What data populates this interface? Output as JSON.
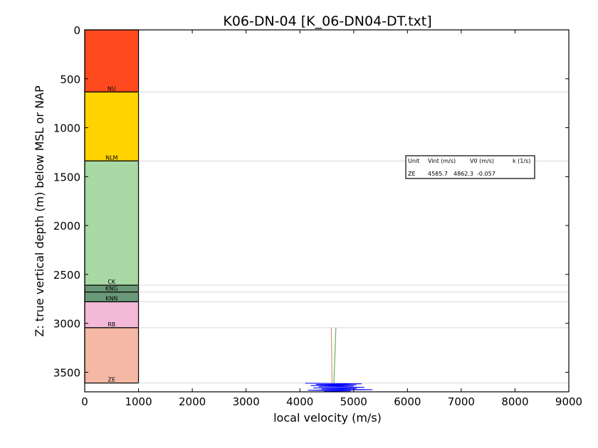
{
  "chart_data": {
    "type": "line",
    "title": "K06-DN-04 [K_06-DN04-DT.txt]",
    "xlabel": "local velocity (m/s)",
    "ylabel": "Z: true vertical depth (m) below MSL or NAP",
    "xlim": [
      0,
      9000
    ],
    "ylim": [
      3700,
      0
    ],
    "y_inverted": true,
    "x_ticks": [
      "0",
      "1000",
      "2000",
      "3000",
      "4000",
      "5000",
      "6000",
      "7000",
      "8000",
      "9000"
    ],
    "y_ticks": [
      "0",
      "500",
      "1000",
      "1500",
      "2000",
      "2500",
      "3000",
      "3500"
    ],
    "grid": false,
    "units": [
      {
        "name": "NU",
        "top": 0,
        "base": 635,
        "color": "#ff4a1f"
      },
      {
        "name": "NLM",
        "top": 635,
        "base": 1340,
        "color": "#ffd200"
      },
      {
        "name": "CK",
        "top": 1340,
        "base": 2610,
        "color": "#a8d8a4"
      },
      {
        "name": "KNG",
        "top": 2610,
        "base": 2680,
        "color": "#6a9878"
      },
      {
        "name": "KNN",
        "top": 2680,
        "base": 2780,
        "color": "#6a9878"
      },
      {
        "name": "RB",
        "top": 2780,
        "base": 3045,
        "color": "#f4b8d8"
      },
      {
        "name": "ZE",
        "top": 3045,
        "base": 3610,
        "color": "#f5b8a4"
      }
    ],
    "unit_column_velocity": [
      0,
      1000
    ],
    "series": [
      {
        "color": "#e0907a",
        "points": [
          [
            4585,
            3045
          ],
          [
            4598,
            3610
          ]
        ]
      },
      {
        "color": "#62b262",
        "points": [
          [
            4670,
            3045
          ],
          [
            4632,
            3610
          ]
        ]
      },
      {
        "color": "#0000ff",
        "points": [
          [
            4100,
            3612
          ],
          [
            5150,
            3618
          ],
          [
            4300,
            3624
          ],
          [
            5050,
            3630
          ],
          [
            4200,
            3636
          ],
          [
            5000,
            3642
          ],
          [
            4350,
            3648
          ],
          [
            5200,
            3654
          ],
          [
            4250,
            3660
          ],
          [
            5050,
            3666
          ],
          [
            4400,
            3672
          ],
          [
            5350,
            3678
          ],
          [
            4150,
            3684
          ],
          [
            4950,
            3690
          ],
          [
            4450,
            3696
          ]
        ]
      }
    ],
    "table": {
      "headers": [
        "Unit",
        "Vint (m/s)",
        "V0 (m/s)",
        "k (1/s)"
      ],
      "rows": [
        [
          "ZE",
          "4585.7",
          "4862.3",
          "-0.057"
        ]
      ]
    }
  }
}
